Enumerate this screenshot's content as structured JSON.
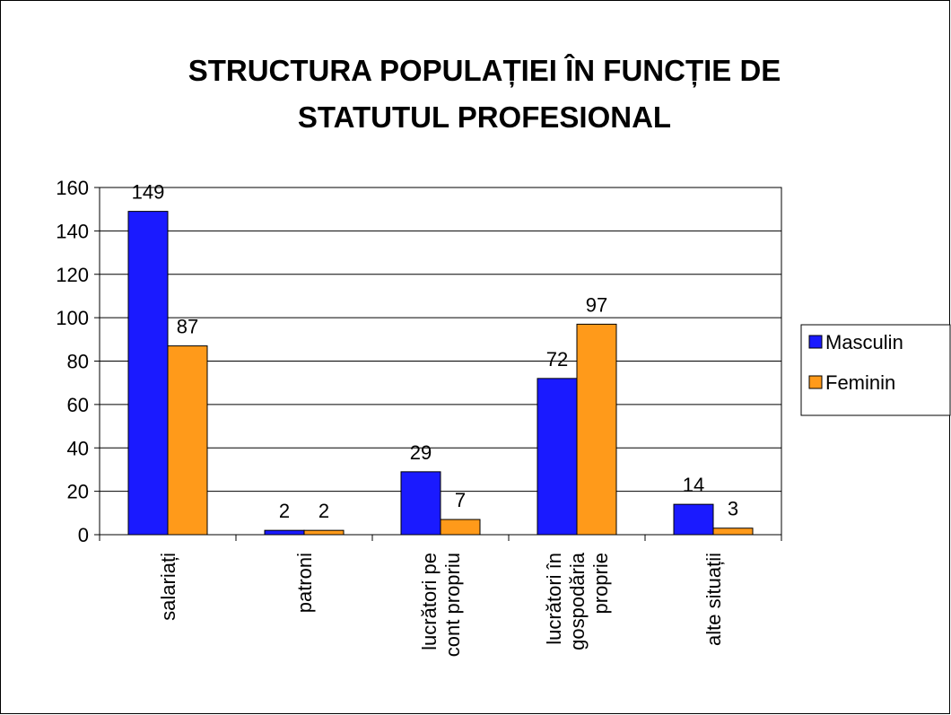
{
  "chart_data": {
    "type": "bar",
    "title": "STRUCTURA POPULAȚIEI ÎN FUNCȚIE DE STATUTUL PROFESIONAL",
    "categories": [
      "salariați",
      "patroni",
      "lucrători pe cont propriu",
      "lucrători în gospodăria proprie",
      "alte situații"
    ],
    "series": [
      {
        "name": "Masculin",
        "color": "#1a1aff",
        "values": [
          149,
          2,
          29,
          72,
          14
        ]
      },
      {
        "name": "Feminin",
        "color": "#ff9a1a",
        "values": [
          87,
          2,
          7,
          97,
          3
        ]
      }
    ],
    "ylim": [
      0,
      160
    ],
    "yticks": [
      0,
      20,
      40,
      60,
      80,
      100,
      120,
      140,
      160
    ],
    "grid": true,
    "legend": "right"
  }
}
